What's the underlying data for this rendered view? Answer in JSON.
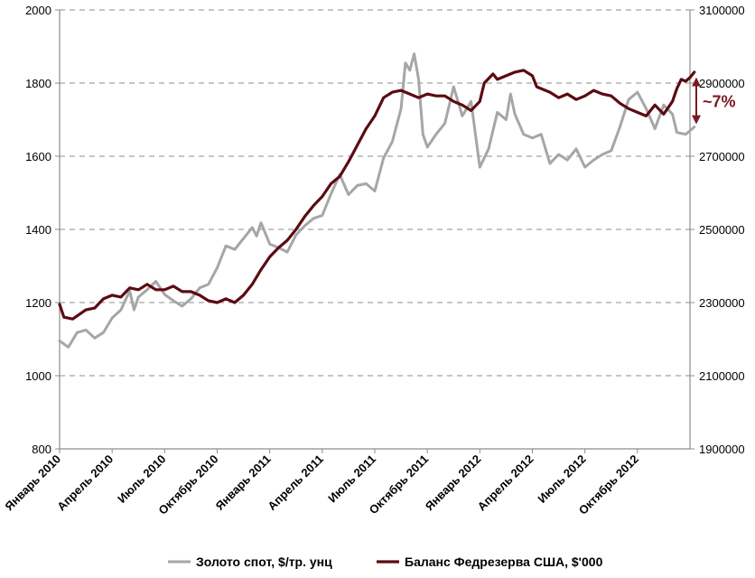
{
  "chart_data": {
    "type": "line",
    "annotation": "~7%",
    "grid": "horizontal dashed",
    "legend_position": "bottom",
    "colors": {
      "gold": "#a6a6a6",
      "fed": "#5b0b12",
      "axis": "#8c8c8c",
      "grid": "#8c8c8c",
      "annotation": "#7a1a22"
    },
    "y_left": {
      "ylim": [
        800,
        2000
      ],
      "ticks": [
        800,
        1000,
        1200,
        1400,
        1600,
        1800,
        2000
      ],
      "tick_labels": [
        "800",
        "1000",
        "1200",
        "1400",
        "1600",
        "1800",
        "2000"
      ]
    },
    "y_right": {
      "ylim": [
        1900000,
        3100000
      ],
      "ticks": [
        1900000,
        2100000,
        2300000,
        2500000,
        2700000,
        2900000,
        3100000
      ],
      "tick_labels": [
        "1900000",
        "2100000",
        "2300000",
        "2500000",
        "2700000",
        "2900000",
        "3100000"
      ]
    },
    "x_tick_labels": [
      "Январь 2010",
      "Апрель 2010",
      "Июль 2010",
      "Октябрь 2010",
      "Январь 2011",
      "Апрель 2011",
      "Июль 2011",
      "Октябрь 2011",
      "Январь 2012",
      "Апрель 2012",
      "Июль 2012",
      "Октябрь 2012"
    ],
    "x_range_months": [
      0,
      36
    ],
    "series": [
      {
        "name": "Золото спот, $/тр. унц",
        "axis": "left",
        "points": [
          [
            0,
            1095
          ],
          [
            0.5,
            1078
          ],
          [
            1,
            1118
          ],
          [
            1.5,
            1125
          ],
          [
            2,
            1103
          ],
          [
            2.5,
            1118
          ],
          [
            3,
            1158
          ],
          [
            3.5,
            1180
          ],
          [
            4,
            1232
          ],
          [
            4.25,
            1180
          ],
          [
            4.5,
            1215
          ],
          [
            5,
            1235
          ],
          [
            5.5,
            1258
          ],
          [
            6,
            1222
          ],
          [
            6.5,
            1205
          ],
          [
            7,
            1190
          ],
          [
            7.5,
            1210
          ],
          [
            8,
            1240
          ],
          [
            8.5,
            1250
          ],
          [
            9,
            1295
          ],
          [
            9.5,
            1355
          ],
          [
            10,
            1345
          ],
          [
            10.5,
            1375
          ],
          [
            11,
            1405
          ],
          [
            11.25,
            1382
          ],
          [
            11.5,
            1418
          ],
          [
            12,
            1360
          ],
          [
            12.5,
            1350
          ],
          [
            13,
            1338
          ],
          [
            13.5,
            1385
          ],
          [
            14,
            1410
          ],
          [
            14.5,
            1430
          ],
          [
            15,
            1438
          ],
          [
            15.5,
            1497
          ],
          [
            16,
            1550
          ],
          [
            16.5,
            1495
          ],
          [
            17,
            1520
          ],
          [
            17.5,
            1525
          ],
          [
            18,
            1505
          ],
          [
            18.5,
            1595
          ],
          [
            19,
            1640
          ],
          [
            19.5,
            1730
          ],
          [
            19.75,
            1855
          ],
          [
            20,
            1835
          ],
          [
            20.25,
            1880
          ],
          [
            20.5,
            1810
          ],
          [
            20.75,
            1660
          ],
          [
            21,
            1625
          ],
          [
            21.5,
            1660
          ],
          [
            22,
            1690
          ],
          [
            22.5,
            1790
          ],
          [
            23,
            1710
          ],
          [
            23.5,
            1750
          ],
          [
            24,
            1570
          ],
          [
            24.25,
            1595
          ],
          [
            24.5,
            1620
          ],
          [
            25,
            1720
          ],
          [
            25.5,
            1700
          ],
          [
            25.75,
            1770
          ],
          [
            26,
            1715
          ],
          [
            26.5,
            1660
          ],
          [
            27,
            1650
          ],
          [
            27.5,
            1660
          ],
          [
            28,
            1580
          ],
          [
            28.5,
            1605
          ],
          [
            29,
            1590
          ],
          [
            29.5,
            1620
          ],
          [
            30,
            1570
          ],
          [
            30.5,
            1590
          ],
          [
            31,
            1605
          ],
          [
            31.5,
            1615
          ],
          [
            32,
            1680
          ],
          [
            32.5,
            1755
          ],
          [
            33,
            1775
          ],
          [
            33.5,
            1730
          ],
          [
            34,
            1675
          ],
          [
            34.5,
            1740
          ],
          [
            35,
            1715
          ],
          [
            35.25,
            1665
          ],
          [
            35.75,
            1660
          ],
          [
            36,
            1670
          ],
          [
            36.25,
            1680
          ]
        ]
      },
      {
        "name": "Баланс Федрезерва США, $'000",
        "axis": "right",
        "points": [
          [
            0,
            2295000
          ],
          [
            0.25,
            2260000
          ],
          [
            0.75,
            2255000
          ],
          [
            1.5,
            2280000
          ],
          [
            2,
            2285000
          ],
          [
            2.5,
            2310000
          ],
          [
            3,
            2320000
          ],
          [
            3.5,
            2315000
          ],
          [
            4,
            2340000
          ],
          [
            4.5,
            2335000
          ],
          [
            5,
            2350000
          ],
          [
            5.5,
            2335000
          ],
          [
            6,
            2335000
          ],
          [
            6.5,
            2345000
          ],
          [
            7,
            2330000
          ],
          [
            7.5,
            2330000
          ],
          [
            8,
            2320000
          ],
          [
            8.5,
            2305000
          ],
          [
            9,
            2300000
          ],
          [
            9.5,
            2310000
          ],
          [
            10,
            2300000
          ],
          [
            10.5,
            2320000
          ],
          [
            11,
            2350000
          ],
          [
            11.5,
            2390000
          ],
          [
            12,
            2425000
          ],
          [
            12.5,
            2450000
          ],
          [
            13,
            2470000
          ],
          [
            13.5,
            2500000
          ],
          [
            14,
            2535000
          ],
          [
            14.5,
            2565000
          ],
          [
            15,
            2590000
          ],
          [
            15.5,
            2625000
          ],
          [
            16,
            2645000
          ],
          [
            16.5,
            2685000
          ],
          [
            17,
            2730000
          ],
          [
            17.5,
            2775000
          ],
          [
            18,
            2810000
          ],
          [
            18.5,
            2860000
          ],
          [
            19,
            2875000
          ],
          [
            19.5,
            2880000
          ],
          [
            20,
            2870000
          ],
          [
            20.5,
            2860000
          ],
          [
            21,
            2870000
          ],
          [
            21.5,
            2865000
          ],
          [
            22,
            2865000
          ],
          [
            22.5,
            2850000
          ],
          [
            23,
            2840000
          ],
          [
            23.5,
            2825000
          ],
          [
            24,
            2850000
          ],
          [
            24.25,
            2900000
          ],
          [
            24.75,
            2925000
          ],
          [
            25,
            2910000
          ],
          [
            25.5,
            2920000
          ],
          [
            26,
            2930000
          ],
          [
            26.5,
            2935000
          ],
          [
            27,
            2920000
          ],
          [
            27.25,
            2890000
          ],
          [
            27.75,
            2880000
          ],
          [
            28,
            2875000
          ],
          [
            28.5,
            2860000
          ],
          [
            29,
            2870000
          ],
          [
            29.5,
            2855000
          ],
          [
            30,
            2865000
          ],
          [
            30.5,
            2880000
          ],
          [
            31,
            2870000
          ],
          [
            31.5,
            2865000
          ],
          [
            32,
            2845000
          ],
          [
            32.5,
            2830000
          ],
          [
            33,
            2820000
          ],
          [
            33.5,
            2810000
          ],
          [
            34,
            2840000
          ],
          [
            34.5,
            2815000
          ],
          [
            35,
            2850000
          ],
          [
            35.25,
            2885000
          ],
          [
            35.5,
            2910000
          ],
          [
            35.75,
            2905000
          ],
          [
            36,
            2915000
          ],
          [
            36.25,
            2930000
          ]
        ]
      }
    ]
  }
}
